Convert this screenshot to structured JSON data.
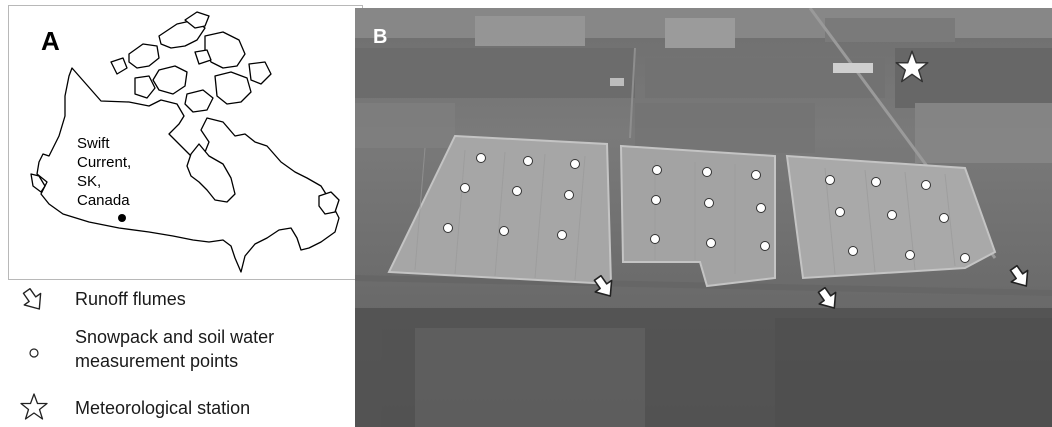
{
  "panel_a": {
    "letter": "A",
    "location_lines": [
      "Swift",
      "Current,",
      "SK,",
      "Canada"
    ]
  },
  "panel_b": {
    "letter": "B"
  },
  "legend": {
    "flumes": "Runoff flumes",
    "points_line1": "Snowpack and soil water",
    "points_line2": "measurement points",
    "station": "Meteorological station"
  },
  "colors": {
    "map_stroke": "#000000",
    "photo_dark": "#5a5a5a",
    "field_light": "#a8a8a8",
    "marker_fill": "#ffffff"
  }
}
